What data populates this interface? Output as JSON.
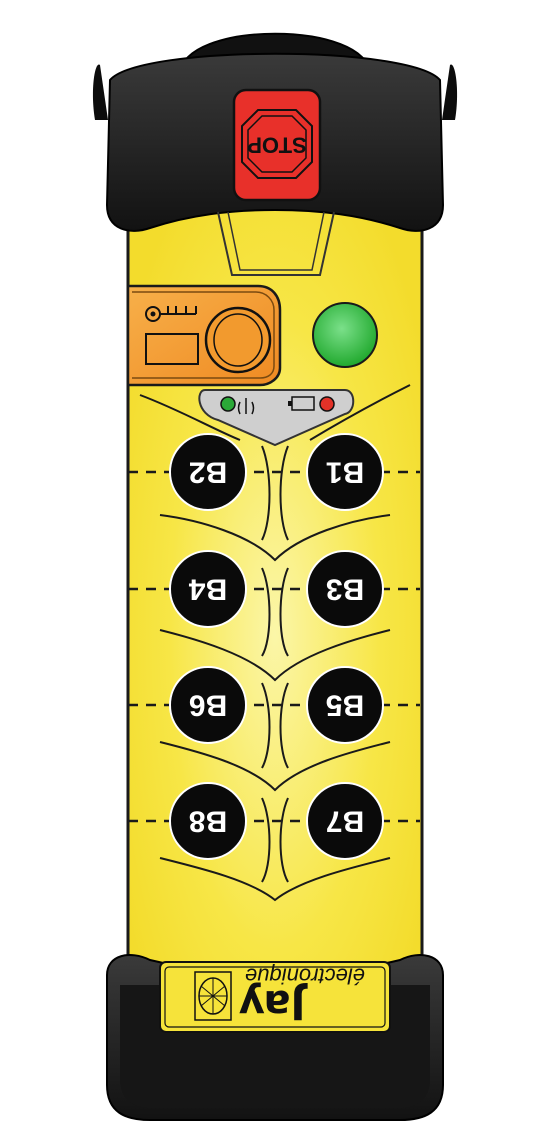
{
  "remote": {
    "stop_label": "STOP",
    "brand_name": "Jay",
    "brand_subtitle": "électronique",
    "buttons": [
      {
        "id": "B1",
        "label": "B1"
      },
      {
        "id": "B2",
        "label": "B2"
      },
      {
        "id": "B3",
        "label": "B3"
      },
      {
        "id": "B4",
        "label": "B4"
      },
      {
        "id": "B5",
        "label": "B5"
      },
      {
        "id": "B6",
        "label": "B6"
      },
      {
        "id": "B7",
        "label": "B7"
      },
      {
        "id": "B8",
        "label": "B8"
      }
    ],
    "icons": {
      "key": "key-icon",
      "antenna": "antenna-signal-icon",
      "battery": "battery-icon",
      "brand_logo": "globe-logo-icon"
    },
    "colors": {
      "body_yellow": "#f6e33a",
      "body_highlight": "#fbf5a0",
      "bumper_black": "#1e1e1e",
      "stop_red": "#e8302a",
      "key_orange": "#f29a2e",
      "status_green": "#2fbf3a",
      "led_green": "#2aa837",
      "led_red": "#e23228",
      "button_black": "#0a0a0a",
      "indicator_grey": "#cfcfcf"
    }
  }
}
